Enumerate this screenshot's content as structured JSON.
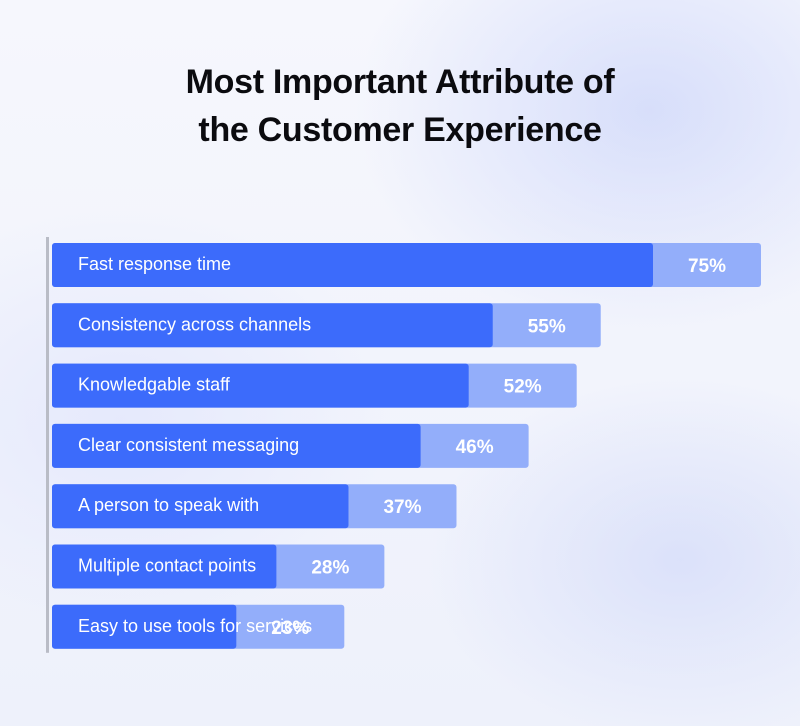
{
  "title_line1": "Most Important Attribute of",
  "title_line2": "the Customer Experience",
  "colors": {
    "bar": "#3c6bfb",
    "value_box": "#93aefa",
    "value_text": "#ffffff",
    "label_text": "#ffffff",
    "axis": "#b9bcc6"
  },
  "chart_data": {
    "type": "bar",
    "orientation": "horizontal",
    "title": "Most Important Attribute of the Customer Experience",
    "categories": [
      "Fast response time",
      "Consistency across channels",
      "Knowledgable staff",
      "Clear consistent messaging",
      "A person to speak with",
      "Multiple contact points",
      "Easy to use tools for services"
    ],
    "values": [
      75,
      55,
      52,
      46,
      37,
      28,
      23
    ],
    "value_labels": [
      "75%",
      "55%",
      "52%",
      "46%",
      "37%",
      "28%",
      "23%"
    ],
    "xlabel": "",
    "ylabel": "",
    "grid": false
  }
}
